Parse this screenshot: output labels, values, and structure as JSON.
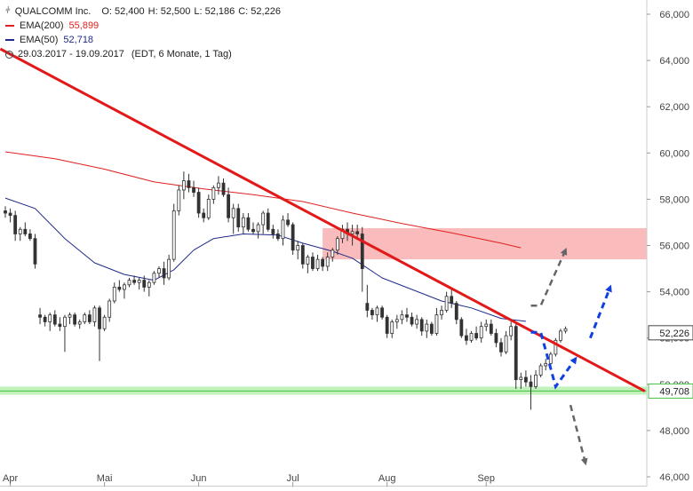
{
  "legend": {
    "symbol": "QUALCOMM Inc.",
    "open": "O: 52,400",
    "high": "H: 52,500",
    "low": "L: 52,186",
    "close": "C: 52,226",
    "ema200_label": "EMA(200)",
    "ema200_value": "55,899",
    "ema50_label": "EMA(50)",
    "ema50_value": "52,718",
    "range": "29.03.2017 - 19.09.2017",
    "range_info": "(EDT, 6 Monate, 1 Tag)"
  },
  "colors": {
    "up": "#333333",
    "down": "#333333",
    "ema200": "#e02020",
    "ema50": "#1f2a8a",
    "trendline": "#e31818",
    "resistance_zone": "#f8b4b4",
    "support_zone": "#b6f0b0",
    "support_line": "#44c040",
    "arrow_blue": "#1040e0",
    "arrow_gray": "#666666"
  },
  "chart_data": {
    "type": "candlestick",
    "ylim": [
      46,
      66.3
    ],
    "yticks": [
      46,
      48,
      50,
      52,
      54,
      56,
      58,
      60,
      62,
      64,
      66
    ],
    "ytick_labels": [
      "46,000",
      "48,000",
      "50,000",
      "52,000",
      "54,000",
      "56,000",
      "58,000",
      "60,000",
      "62,000",
      "64,000",
      "66,000"
    ],
    "xticks": [
      {
        "label": "Apr",
        "index": 1
      },
      {
        "label": "Mai",
        "index": 20
      },
      {
        "label": "Jun",
        "index": 39
      },
      {
        "label": "Jul",
        "index": 58
      },
      {
        "label": "Aug",
        "index": 77
      },
      {
        "label": "Sep",
        "index": 97
      }
    ],
    "last_price_label": "52,226",
    "last_price": 52.226,
    "support_label": "49,708",
    "support": 49.708,
    "candles": [
      [
        57.5,
        57.7,
        57.2,
        57.4
      ],
      [
        57.4,
        57.6,
        57.0,
        57.3
      ],
      [
        57.3,
        57.5,
        56.2,
        56.5
      ],
      [
        56.5,
        56.8,
        56.2,
        56.7
      ],
      [
        56.7,
        57.0,
        56.4,
        56.5
      ],
      [
        56.5,
        56.7,
        56.2,
        56.3
      ],
      [
        56.3,
        56.5,
        55.0,
        55.2
      ],
      [
        53.0,
        53.3,
        52.6,
        52.9
      ],
      [
        52.9,
        53.0,
        52.5,
        52.7
      ],
      [
        52.7,
        53.1,
        52.3,
        53.0
      ],
      [
        53.0,
        53.2,
        52.5,
        52.6
      ],
      [
        52.6,
        52.9,
        52.3,
        52.5
      ],
      [
        52.5,
        53.0,
        51.4,
        52.9
      ],
      [
        52.9,
        53.1,
        52.6,
        53.0
      ],
      [
        53.0,
        53.1,
        52.5,
        52.6
      ],
      [
        52.6,
        52.8,
        52.4,
        52.7
      ],
      [
        52.7,
        53.1,
        52.6,
        53.0
      ],
      [
        53.0,
        53.2,
        52.6,
        52.7
      ],
      [
        52.7,
        53.4,
        52.5,
        53.3
      ],
      [
        53.3,
        53.4,
        51.0,
        52.4
      ],
      [
        52.4,
        53.0,
        52.3,
        52.9
      ],
      [
        52.9,
        53.7,
        52.7,
        53.6
      ],
      [
        53.6,
        54.4,
        53.5,
        54.2
      ],
      [
        54.2,
        54.5,
        54.0,
        54.1
      ],
      [
        54.1,
        54.4,
        53.7,
        54.3
      ],
      [
        54.3,
        54.6,
        54.2,
        54.5
      ],
      [
        54.5,
        54.7,
        54.3,
        54.4
      ],
      [
        54.4,
        54.6,
        54.1,
        54.5
      ],
      [
        54.5,
        54.7,
        54.0,
        54.2
      ],
      [
        54.2,
        54.5,
        53.8,
        54.4
      ],
      [
        54.4,
        54.9,
        54.3,
        54.8
      ],
      [
        54.8,
        55.1,
        54.6,
        55.0
      ],
      [
        55.0,
        55.3,
        54.3,
        54.6
      ],
      [
        54.6,
        55.6,
        54.5,
        55.4
      ],
      [
        55.4,
        57.8,
        55.3,
        57.5
      ],
      [
        57.5,
        58.6,
        57.3,
        58.4
      ],
      [
        58.4,
        59.2,
        58.0,
        58.8
      ],
      [
        58.8,
        59.1,
        58.3,
        58.5
      ],
      [
        58.5,
        58.8,
        58.1,
        58.3
      ],
      [
        58.3,
        58.5,
        57.2,
        57.4
      ],
      [
        57.4,
        57.6,
        57.0,
        57.2
      ],
      [
        57.2,
        58.2,
        57.1,
        58.0
      ],
      [
        58.0,
        58.6,
        57.8,
        58.5
      ],
      [
        58.5,
        59.0,
        58.2,
        58.7
      ],
      [
        58.7,
        58.9,
        58.1,
        58.2
      ],
      [
        58.2,
        58.5,
        57.0,
        57.2
      ],
      [
        57.2,
        57.8,
        56.5,
        57.6
      ],
      [
        57.6,
        57.8,
        56.6,
        56.8
      ],
      [
        56.8,
        57.4,
        56.5,
        57.2
      ],
      [
        57.2,
        57.4,
        56.6,
        56.7
      ],
      [
        56.7,
        57.0,
        56.5,
        56.6
      ],
      [
        56.6,
        57.0,
        56.3,
        56.9
      ],
      [
        56.9,
        57.5,
        56.5,
        57.4
      ],
      [
        57.4,
        57.6,
        56.6,
        56.7
      ],
      [
        56.7,
        56.9,
        56.3,
        56.5
      ],
      [
        56.5,
        56.7,
        56.2,
        56.3
      ],
      [
        56.3,
        57.3,
        56.0,
        57.1
      ],
      [
        57.1,
        57.4,
        56.8,
        56.9
      ],
      [
        56.9,
        57.0,
        55.6,
        55.8
      ],
      [
        55.8,
        56.2,
        55.4,
        56.0
      ],
      [
        56.0,
        56.1,
        55.0,
        55.2
      ],
      [
        55.2,
        55.6,
        54.8,
        55.5
      ],
      [
        55.5,
        55.7,
        54.9,
        55.0
      ],
      [
        55.0,
        55.6,
        54.9,
        55.4
      ],
      [
        55.4,
        55.5,
        54.9,
        55.1
      ],
      [
        55.1,
        55.7,
        54.9,
        55.5
      ],
      [
        55.5,
        55.9,
        55.3,
        55.8
      ],
      [
        55.8,
        56.4,
        55.6,
        56.3
      ],
      [
        56.3,
        56.9,
        56.1,
        56.7
      ],
      [
        56.7,
        57.0,
        56.2,
        56.5
      ],
      [
        56.5,
        56.9,
        56.0,
        56.6
      ],
      [
        56.6,
        56.9,
        56.3,
        56.5
      ],
      [
        56.5,
        56.8,
        54.0,
        55.0
      ],
      [
        53.5,
        54.3,
        52.9,
        53.2
      ],
      [
        53.2,
        53.3,
        52.8,
        53.0
      ],
      [
        53.0,
        53.4,
        52.7,
        53.3
      ],
      [
        53.3,
        53.4,
        52.8,
        52.9
      ],
      [
        52.9,
        53.0,
        52.0,
        52.2
      ],
      [
        52.2,
        52.8,
        52.0,
        52.7
      ],
      [
        52.7,
        53.0,
        52.4,
        52.8
      ],
      [
        52.8,
        53.2,
        52.6,
        53.0
      ],
      [
        53.0,
        53.3,
        52.7,
        52.9
      ],
      [
        52.9,
        53.1,
        52.5,
        52.6
      ],
      [
        52.6,
        53.0,
        52.4,
        52.8
      ],
      [
        52.8,
        52.9,
        52.1,
        52.3
      ],
      [
        52.3,
        52.8,
        52.0,
        52.6
      ],
      [
        52.6,
        52.7,
        52.1,
        52.2
      ],
      [
        52.2,
        53.3,
        52.1,
        53.0
      ],
      [
        53.0,
        53.4,
        52.8,
        53.2
      ],
      [
        53.2,
        54.0,
        53.1,
        53.8
      ],
      [
        53.8,
        54.1,
        53.3,
        53.5
      ],
      [
        53.5,
        53.6,
        52.6,
        52.8
      ],
      [
        52.8,
        52.9,
        52.0,
        52.1
      ],
      [
        52.1,
        52.4,
        51.7,
        51.9
      ],
      [
        51.9,
        52.3,
        51.8,
        52.2
      ],
      [
        52.2,
        52.5,
        51.9,
        52.0
      ],
      [
        52.0,
        52.7,
        51.8,
        52.5
      ],
      [
        52.5,
        52.8,
        52.3,
        52.6
      ],
      [
        52.6,
        52.8,
        52.1,
        52.2
      ],
      [
        52.2,
        52.4,
        51.6,
        51.8
      ],
      [
        51.8,
        52.0,
        51.2,
        51.4
      ],
      [
        51.4,
        52.3,
        51.3,
        52.1
      ],
      [
        52.1,
        52.7,
        51.9,
        52.5
      ],
      [
        52.5,
        52.7,
        49.8,
        50.2
      ],
      [
        50.2,
        50.5,
        49.8,
        50.3
      ],
      [
        50.3,
        50.6,
        49.9,
        50.1
      ],
      [
        50.1,
        50.4,
        48.9,
        49.9
      ],
      [
        49.9,
        50.6,
        49.8,
        50.4
      ],
      [
        50.4,
        50.9,
        50.3,
        50.8
      ],
      [
        50.8,
        51.1,
        50.6,
        50.9
      ],
      [
        50.9,
        51.4,
        50.7,
        51.3
      ],
      [
        51.3,
        52.0,
        51.2,
        51.9
      ],
      [
        51.9,
        52.4,
        51.8,
        52.3
      ],
      [
        52.3,
        52.5,
        52.2,
        52.4
      ]
    ],
    "ema200": [
      [
        0,
        60.05
      ],
      [
        10,
        59.75
      ],
      [
        20,
        59.3
      ],
      [
        30,
        58.75
      ],
      [
        40,
        58.45
      ],
      [
        50,
        58.2
      ],
      [
        60,
        57.9
      ],
      [
        70,
        57.4
      ],
      [
        80,
        56.95
      ],
      [
        90,
        56.55
      ],
      [
        100,
        56.1
      ],
      [
        104,
        55.9
      ]
    ],
    "ema50": [
      [
        0,
        58.05
      ],
      [
        6,
        57.6
      ],
      [
        12,
        56.3
      ],
      [
        18,
        55.25
      ],
      [
        24,
        54.75
      ],
      [
        30,
        54.5
      ],
      [
        34,
        54.95
      ],
      [
        38,
        55.8
      ],
      [
        42,
        56.3
      ],
      [
        48,
        56.5
      ],
      [
        55,
        56.45
      ],
      [
        60,
        56.1
      ],
      [
        66,
        55.75
      ],
      [
        70,
        55.45
      ],
      [
        76,
        54.6
      ],
      [
        82,
        54.1
      ],
      [
        88,
        53.6
      ],
      [
        94,
        53.3
      ],
      [
        100,
        52.85
      ],
      [
        105,
        52.72
      ]
    ],
    "trendline": [
      [
        -1,
        64.5
      ],
      [
        129,
        49.7
      ]
    ],
    "resistance_zone": {
      "from_index": 64,
      "to_index": 129,
      "low": 55.4,
      "high": 56.75
    },
    "support_zone": {
      "low": 49.55,
      "high": 49.9,
      "line": 49.708
    },
    "scenario_arrows": [
      {
        "color": "blue",
        "points": [
          [
            106,
            52.25
          ],
          [
            108,
            52.25
          ],
          [
            111,
            49.9
          ],
          [
            115,
            51.1
          ]
        ]
      },
      {
        "color": "blue",
        "points": [
          [
            118,
            52.0
          ],
          [
            122,
            54.2
          ]
        ]
      },
      {
        "color": "gray",
        "points": [
          [
            106,
            53.4
          ],
          [
            108,
            53.4
          ],
          [
            113,
            55.8
          ]
        ]
      },
      {
        "color": "gray",
        "points": [
          [
            114,
            49.1
          ],
          [
            117,
            46.6
          ]
        ]
      }
    ]
  }
}
